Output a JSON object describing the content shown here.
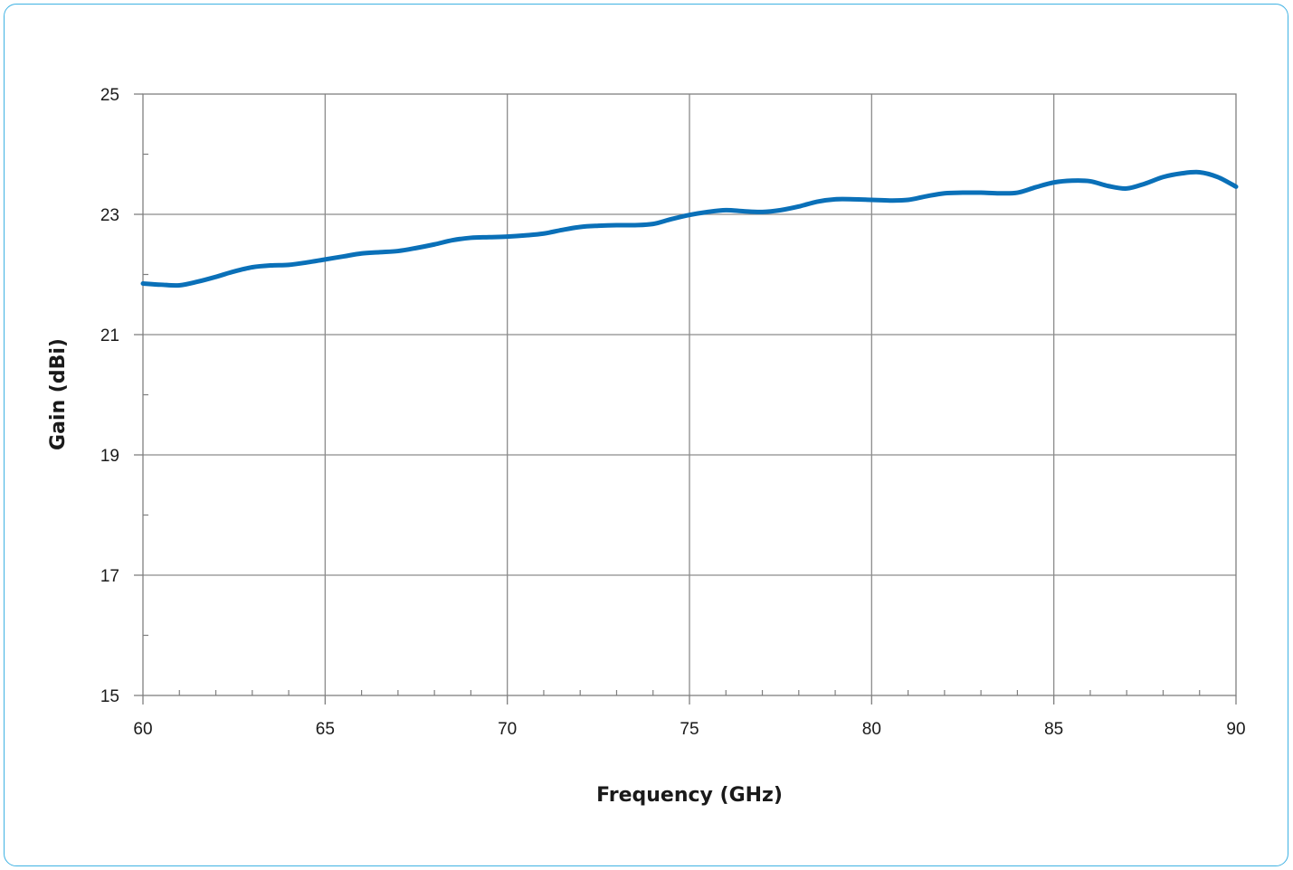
{
  "chart_data": {
    "type": "line",
    "title": "",
    "xlabel": "Frequency (GHz)",
    "ylabel": "Gain (dBi)",
    "xlim": [
      60,
      90
    ],
    "ylim": [
      15,
      25
    ],
    "x_ticks": [
      60,
      65,
      70,
      75,
      80,
      85,
      90
    ],
    "y_ticks": [
      15,
      17,
      19,
      21,
      23,
      25
    ],
    "x_minor_step": 1,
    "y_minor_step": 1,
    "grid": true,
    "legend": "none",
    "series": [
      {
        "color": "#0a70b8",
        "x": [
          60,
          60.5,
          61,
          61.5,
          62,
          62.5,
          63,
          63.5,
          64,
          64.5,
          65,
          65.5,
          66,
          66.5,
          67,
          67.5,
          68,
          68.5,
          69,
          69.5,
          70,
          70.5,
          71,
          71.5,
          72,
          72.5,
          73,
          73.5,
          74,
          74.5,
          75,
          75.5,
          76,
          76.5,
          77,
          77.5,
          78,
          78.5,
          79,
          79.5,
          80,
          80.5,
          81,
          81.5,
          82,
          82.5,
          83,
          83.5,
          84,
          84.5,
          85,
          85.5,
          86,
          86.5,
          87,
          87.5,
          88,
          88.5,
          89,
          89.5,
          90
        ],
        "values": [
          21.85,
          21.83,
          21.82,
          21.88,
          21.96,
          22.05,
          22.12,
          22.15,
          22.16,
          22.2,
          22.25,
          22.3,
          22.35,
          22.37,
          22.39,
          22.44,
          22.5,
          22.57,
          22.61,
          22.62,
          22.63,
          22.65,
          22.68,
          22.74,
          22.79,
          22.81,
          22.82,
          22.82,
          22.84,
          22.92,
          22.99,
          23.04,
          23.07,
          23.05,
          23.04,
          23.07,
          23.13,
          23.21,
          23.25,
          23.25,
          23.24,
          23.23,
          23.24,
          23.3,
          23.35,
          23.36,
          23.36,
          23.35,
          23.36,
          23.45,
          23.53,
          23.56,
          23.55,
          23.47,
          23.43,
          23.51,
          23.62,
          23.68,
          23.7,
          23.62,
          23.46
        ]
      }
    ]
  }
}
